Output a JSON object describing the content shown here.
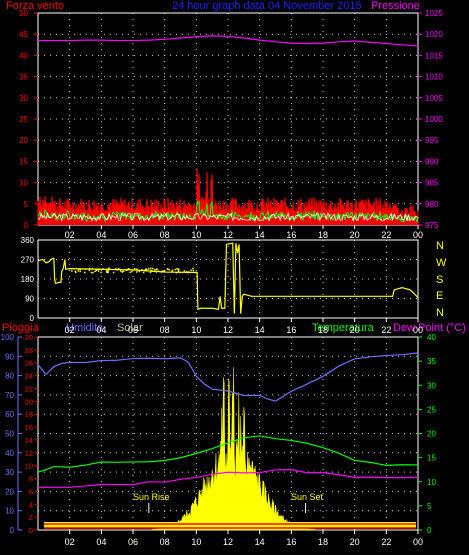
{
  "colors": {
    "background": "#000000",
    "frame": "#ffffff",
    "grid": "#ffffff",
    "wind": "#ff0000",
    "wind_avg": "#00ff00",
    "wind_dir": "#ffff00",
    "pressure": "#ff00ff",
    "rain": "#ff0000",
    "humidity": "#6f6fff",
    "solar": "#ffff00",
    "temperature": "#00ff00",
    "dewpoint": "#ff00ff",
    "title": "#2020ff",
    "solar_label": "#c0c0a0",
    "sun_label": "#ffff00"
  },
  "chart_data": [
    {
      "type": "line",
      "title": "24 hour graph data  04 November 2015",
      "left_axis_label": "Forza vento",
      "right_axis_label": "Pressione",
      "left_ylim": [
        0,
        50
      ],
      "left_ticks": [
        "0",
        "5",
        "10",
        "15",
        "20",
        "25",
        "30",
        "35",
        "40",
        "45",
        "50"
      ],
      "right_ylim": [
        975,
        1025
      ],
      "right_ticks": [
        "975",
        "980",
        "985",
        "990",
        "995",
        "1000",
        "1005",
        "1010",
        "1015",
        "1020",
        "1025"
      ],
      "x_ticks": [
        "02",
        "04",
        "06",
        "08",
        "10",
        "12",
        "14",
        "16",
        "18",
        "20",
        "22",
        "00"
      ],
      "grid": true,
      "series": [
        {
          "name": "Pressione",
          "x": [
            0,
            1,
            2,
            3,
            4,
            5,
            6,
            7,
            8,
            9,
            10,
            11,
            12,
            13,
            14,
            15,
            16,
            17,
            18,
            19,
            20,
            21,
            22,
            23,
            24
          ],
          "values": [
            1018.5,
            1018.5,
            1018.5,
            1018.6,
            1018.6,
            1018.5,
            1018.5,
            1018.6,
            1018.8,
            1019.1,
            1019.4,
            1019.6,
            1019.5,
            1019.1,
            1018.6,
            1018.2,
            1017.9,
            1017.8,
            1017.9,
            1018.2,
            1018.4,
            1018.1,
            1017.8,
            1017.5,
            1017.2
          ]
        }
      ]
    },
    {
      "type": "line",
      "right_axis_letters": [
        "N",
        "W",
        "S",
        "E",
        "N"
      ],
      "ylim": [
        0,
        360
      ],
      "y_ticks": [
        "0",
        "90",
        "180",
        "270",
        "360"
      ],
      "x_ticks": [
        "02",
        "04",
        "06",
        "08",
        "10",
        "12",
        "14",
        "16",
        "18",
        "20",
        "22",
        "00"
      ],
      "grid": true
    },
    {
      "type": "line",
      "labels": {
        "rain": "Pioggia",
        "humidity": "Umidita",
        "solar": "Solar",
        "temperature": "Temperatura",
        "dewpoint": "Dew Point (°C)"
      },
      "annotations": [
        "Sun Rise",
        "Sun Set"
      ],
      "humidity_ylim": [
        0,
        100
      ],
      "humidity_ticks": [
        "0",
        "10",
        "20",
        "30",
        "40",
        "50",
        "60",
        "70",
        "80",
        "90",
        "100"
      ],
      "rain_ylim": [
        0,
        30
      ],
      "rain_ticks": [
        "0",
        "2",
        "4",
        "6",
        "8",
        "10",
        "12",
        "14",
        "16",
        "18",
        "20",
        "22",
        "24",
        "26",
        "28",
        "30"
      ],
      "temp_ylim": [
        0,
        40
      ],
      "temp_ticks": [
        "0",
        "5",
        "10",
        "15",
        "20",
        "25",
        "30",
        "35",
        "40"
      ],
      "x_ticks": [
        "02",
        "04",
        "06",
        "08",
        "10",
        "12",
        "14",
        "16",
        "18",
        "20",
        "22",
        "00"
      ],
      "grid": true,
      "series": [
        {
          "name": "Umidita",
          "x": [
            0,
            0.5,
            1,
            1.5,
            2,
            3,
            4,
            5,
            6,
            7,
            8,
            9,
            9.5,
            10,
            10.5,
            11,
            12,
            13,
            14,
            14.5,
            15,
            16,
            17,
            18,
            19,
            20,
            21,
            22,
            23,
            24
          ],
          "values": [
            86,
            81,
            85,
            86,
            87,
            87,
            88,
            88,
            89,
            89,
            89,
            89,
            87,
            80,
            76,
            73,
            72,
            70,
            70,
            68,
            67,
            72,
            76,
            80,
            85,
            89,
            90,
            90,
            91,
            92
          ]
        },
        {
          "name": "Temperatura",
          "x": [
            0,
            0.5,
            1,
            2,
            3,
            4,
            5,
            6,
            7,
            8,
            9,
            10,
            11,
            12,
            13,
            14,
            15,
            16,
            17,
            18,
            19,
            20,
            21,
            22,
            23,
            24
          ],
          "values": [
            12,
            12.5,
            13,
            13,
            13.5,
            14,
            14,
            14,
            14,
            14.5,
            15,
            16,
            17,
            18,
            19,
            19.5,
            19,
            18.5,
            18,
            17,
            16,
            14.5,
            14,
            13.5,
            13.5,
            13.5
          ]
        },
        {
          "name": "Dew Point",
          "x": [
            0,
            1,
            2,
            3,
            4,
            5,
            6,
            7,
            8,
            9,
            10,
            11,
            12,
            13,
            14,
            15,
            16,
            17,
            18,
            19,
            20,
            21,
            22,
            23,
            24
          ],
          "values": [
            9,
            9,
            9,
            9,
            9.5,
            9.5,
            9.5,
            10,
            10,
            10.5,
            11,
            11.5,
            12,
            12,
            12,
            12.5,
            12.5,
            12,
            12,
            11.5,
            11,
            11,
            11,
            11,
            11
          ]
        }
      ]
    }
  ]
}
